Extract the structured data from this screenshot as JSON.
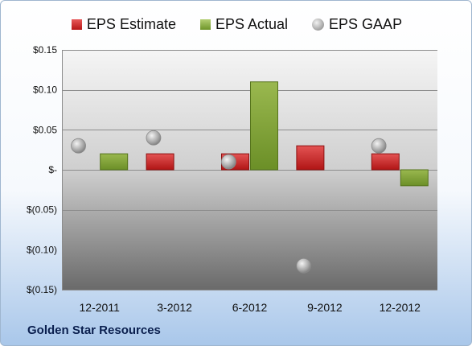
{
  "legend": {
    "estimate": "EPS Estimate",
    "actual": "EPS Actual",
    "gaap": "EPS GAAP"
  },
  "footer_title": "Golden Star Resources",
  "colors": {
    "estimate": "#c62828",
    "actual": "#7ea03a",
    "gaap": "#a8a8a8",
    "plot_top": "#f4f4f4",
    "plot_bottom": "#6b6b6b"
  },
  "chart_data": {
    "type": "bar",
    "categories": [
      "12-2011",
      "3-2012",
      "6-2012",
      "9-2012",
      "12-2012"
    ],
    "series": [
      {
        "name": "EPS Estimate",
        "kind": "bar",
        "values": [
          null,
          0.02,
          0.02,
          0.03,
          0.02
        ]
      },
      {
        "name": "EPS Actual",
        "kind": "bar",
        "values": [
          0.02,
          null,
          0.11,
          null,
          -0.02
        ]
      },
      {
        "name": "EPS GAAP",
        "kind": "scatter",
        "values": [
          0.03,
          0.04,
          0.01,
          -0.12,
          0.03
        ]
      }
    ],
    "ylim": [
      -0.15,
      0.15
    ],
    "yticks": [
      0.15,
      0.1,
      0.05,
      0,
      -0.05,
      -0.1,
      -0.15
    ],
    "ytick_labels": [
      "$0.15",
      "$0.10",
      "$0.05",
      "$-",
      "$(0.05)",
      "$(0.10)",
      "$(0.15)"
    ],
    "grid": true,
    "legend_position": "top"
  }
}
